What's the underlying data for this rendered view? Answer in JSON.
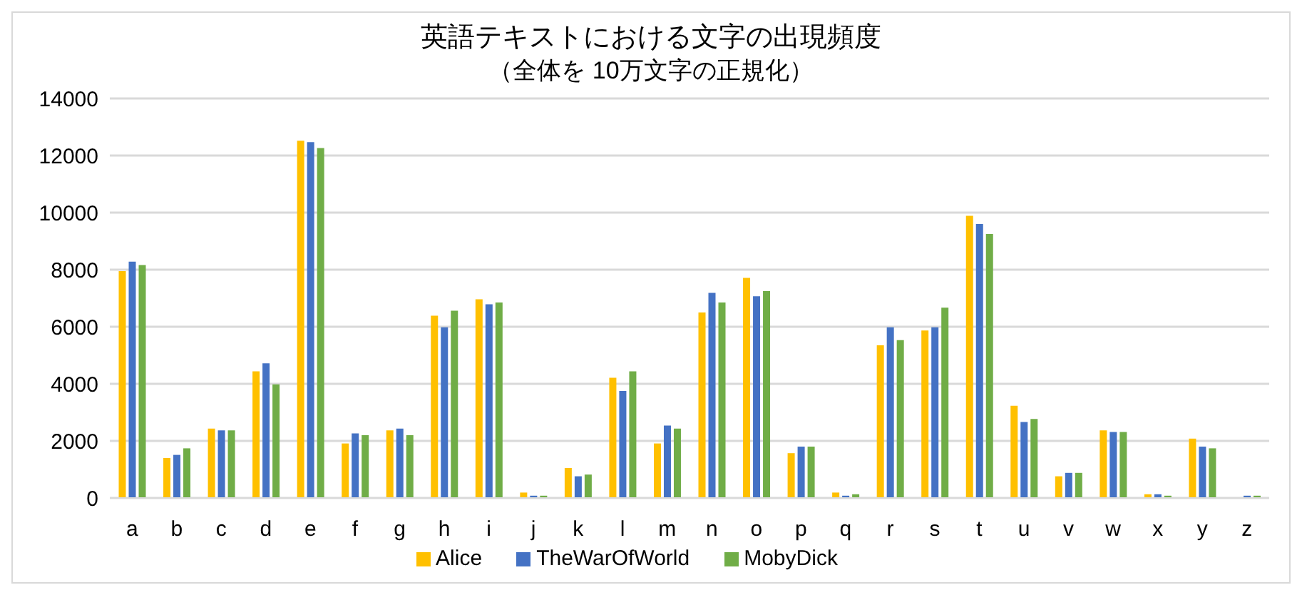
{
  "chart_data": {
    "type": "bar",
    "title": "英語テキストにおける文字の出現頻度",
    "subtitle": "（全体を 10万文字の正規化）",
    "categories": [
      "a",
      "b",
      "c",
      "d",
      "e",
      "f",
      "g",
      "h",
      "i",
      "j",
      "k",
      "l",
      "m",
      "n",
      "o",
      "p",
      "q",
      "r",
      "s",
      "t",
      "u",
      "v",
      "w",
      "x",
      "y",
      "z"
    ],
    "series": [
      {
        "name": "Alice",
        "color": "#ffc000",
        "values": [
          7950,
          1400,
          2430,
          4440,
          12520,
          1910,
          2370,
          6390,
          6960,
          190,
          1050,
          4210,
          1910,
          6500,
          7710,
          1570,
          190,
          5350,
          5870,
          9890,
          3230,
          760,
          2370,
          130,
          2080,
          0
        ]
      },
      {
        "name": "TheWarOfWorld",
        "color": "#4472c4",
        "values": [
          8280,
          1510,
          2370,
          4720,
          12470,
          2260,
          2430,
          5980,
          6790,
          80,
          760,
          3750,
          2540,
          7190,
          7070,
          1800,
          80,
          5980,
          5980,
          9600,
          2660,
          880,
          2310,
          130,
          1800,
          80
        ]
      },
      {
        "name": "MobyDick",
        "color": "#70ad47",
        "values": [
          8160,
          1740,
          2370,
          3980,
          12260,
          2200,
          2200,
          6560,
          6850,
          80,
          820,
          4440,
          2430,
          6850,
          7250,
          1800,
          130,
          5530,
          6670,
          9250,
          2770,
          880,
          2310,
          80,
          1740,
          80
        ]
      }
    ],
    "ylim": [
      0,
      14000
    ],
    "yticks": [
      0,
      2000,
      4000,
      6000,
      8000,
      10000,
      12000,
      14000
    ],
    "grid": "y",
    "legend": "bottom"
  }
}
